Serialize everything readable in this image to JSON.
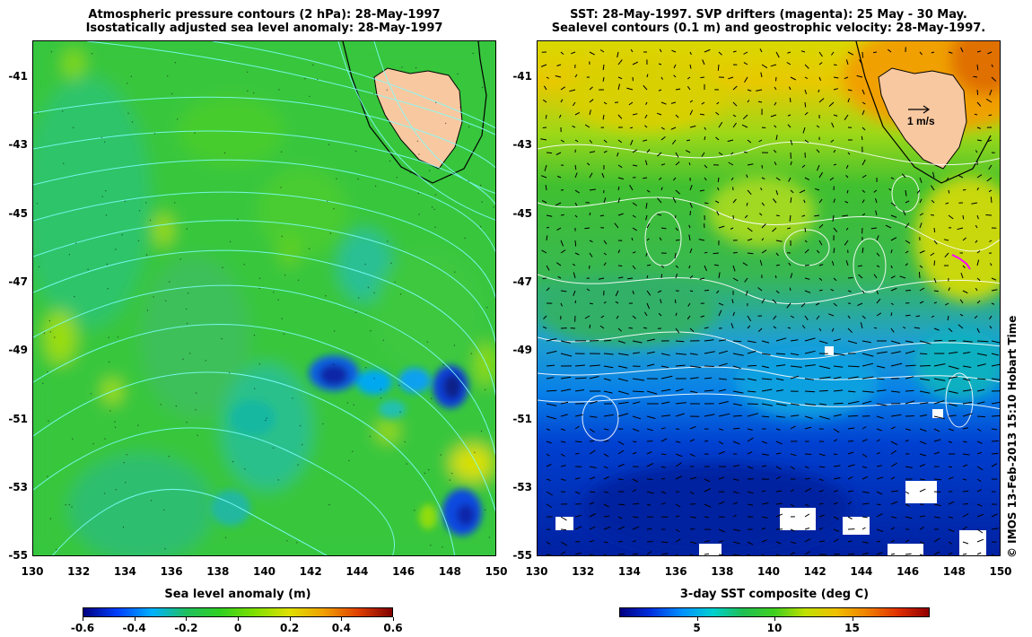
{
  "left": {
    "title_line1": "Atmospheric pressure contours (2 hPa): 28-May-1997",
    "title_line2": "Isostatically adjusted sea level anomaly: 28-May-1997",
    "colorbar_label": "Sea level anomaly (m)",
    "colorbar_ticks": [
      "-0.6",
      "-0.4",
      "-0.2",
      "0",
      "0.2",
      "0.4",
      "0.6"
    ],
    "colorbar_colors": [
      "#000080",
      "#0040ff",
      "#00b0ff",
      "#20c060",
      "#30d020",
      "#80e000",
      "#e0e000",
      "#f0a000",
      "#e04000",
      "#800000"
    ]
  },
  "right": {
    "title_line1": "SST: 28-May-1997. SVP drifters (magenta): 25 May - 30 May.",
    "title_line2": "Sealevel contours (0.1 m) and geostrophic velocity: 28-May-1997.",
    "velocity_key": "1 m/s",
    "colorbar_label": "3-day SST composite (deg C)",
    "colorbar_ticks": [
      "5",
      "10",
      "15"
    ],
    "colorbar_colors": [
      "#000080",
      "#0030e0",
      "#0090ff",
      "#00d0d0",
      "#20c050",
      "#40d020",
      "#c0e000",
      "#f0c000",
      "#f08000",
      "#e03000",
      "#900000"
    ]
  },
  "axes": {
    "lat_ticks": [
      "-41",
      "-43",
      "-45",
      "-47",
      "-49",
      "-51",
      "-53",
      "-55"
    ],
    "lon_ticks": [
      "130",
      "132",
      "134",
      "136",
      "138",
      "140",
      "142",
      "144",
      "146",
      "148",
      "150"
    ]
  },
  "colors": {
    "land": "#f8c8a0",
    "contour_pressure": "#80ffff",
    "contour_sealevel": "#ffffff",
    "drifter": "#ff00ff"
  },
  "credit": "© IMOS 13-Feb-2013 15:10 Hobart Time"
}
